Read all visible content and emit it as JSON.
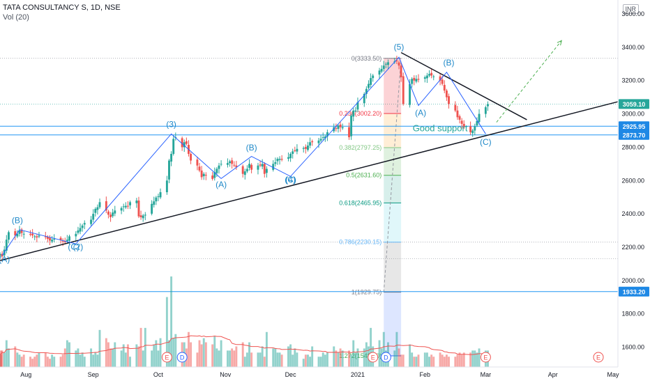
{
  "header": {
    "symbol_line": "TATA CONSULTANCY S, 1D, NSE",
    "volume_line": "Vol (20)",
    "currency": "INR"
  },
  "colors": {
    "up": "#26a69a",
    "down": "#ef5350",
    "wave": "#2962ff",
    "wave_label": "#1e88c8",
    "hline": "#2196f3",
    "trend": "#131722",
    "vol_ma": "#ef5350",
    "price_tag": "#1e88e5"
  },
  "chart_data": {
    "type": "candlestick",
    "x_ticks": [
      "Aug",
      "Sep",
      "Oct",
      "Nov",
      "Dec",
      "2021",
      "Feb",
      "Mar",
      "Apr",
      "May"
    ],
    "y_ticks": [
      "1600.00",
      "1800.00",
      "2000.00",
      "2200.00",
      "2400.00",
      "2600.00",
      "2800.00",
      "3000.00",
      "3200.00",
      "3400.00",
      "3600.00"
    ],
    "ylim": [
      1550,
      3680
    ],
    "x_start": "2020-07-20",
    "x_end": "2021-05-01",
    "closes": [
      2160,
      2145,
      2185,
      2245,
      2290,
      2270,
      2280,
      2300,
      2285,
      2280,
      2275,
      2270,
      2265,
      2258,
      2270,
      2262,
      2250,
      2240,
      2245,
      2250,
      2243,
      2235,
      2230,
      2245,
      2265,
      2280,
      2300,
      2315,
      2330,
      2345,
      2365,
      2400,
      2430,
      2440,
      2470,
      2420,
      2395,
      2380,
      2408,
      2420,
      2435,
      2445,
      2448,
      2445,
      2470,
      2480,
      2385,
      2380,
      2390,
      2395,
      2460,
      2475,
      2498,
      2505,
      2530,
      2600,
      2720,
      2760,
      2850,
      2860,
      2800,
      2830,
      2820,
      2760,
      2720,
      2690,
      2660,
      2620,
      2640,
      2630,
      2610,
      2650,
      2670,
      2690,
      2700,
      2705,
      2715,
      2700,
      2690,
      2680,
      2640,
      2655,
      2670,
      2700,
      2665,
      2690,
      2690,
      2700,
      2640,
      2670,
      2700,
      2710,
      2730,
      2730,
      2725,
      2740,
      2760,
      2775,
      2780,
      2790,
      2795,
      2790,
      2810,
      2830,
      2830,
      2840,
      2850,
      2860,
      2865,
      2890,
      2920,
      2910,
      2930,
      2920,
      2920,
      2860,
      2990,
      3020,
      3020,
      3070,
      3120,
      3150,
      3180,
      3215,
      3230,
      3260,
      3270,
      3290,
      3300,
      3310,
      3315,
      3315,
      3290,
      3220,
      3060,
      3180,
      3210,
      3200,
      3210,
      3205,
      3220,
      3230,
      3240,
      3230,
      3225,
      3200,
      3180,
      3140,
      3100,
      3060,
      3020,
      2980,
      2965,
      2940,
      2920,
      2890,
      2900,
      2925,
      2958,
      3000,
      3040,
      3059
    ],
    "volumes": [
      0.6,
      0.8,
      0.7,
      1.3,
      0.9,
      1.0,
      0.7,
      0.6,
      0.5,
      0.6,
      0.5,
      0.4,
      0.5,
      0.6,
      0.7,
      0.7,
      0.5,
      0.4,
      0.6,
      0.5,
      0.5,
      0.6,
      0.9,
      1.3,
      1.2,
      0.8,
      0.9,
      0.6,
      0.7,
      0.5,
      0.9,
      0.6,
      0.7,
      0.6,
      1.8,
      1.4,
      1.2,
      0.9,
      0.9,
      1.2,
      0.8,
      1.1,
      0.7,
      1.1,
      0.5,
      1.1,
      1.0,
      1.9,
      0.8,
      1.9,
      0.8,
      1.1,
      1.3,
      0.8,
      1.4,
      3.4,
      1.3,
      4.4,
      1.4,
      1.6,
      1.2,
      1.2,
      0.9,
      1.7,
      1.2,
      0.7,
      1.3,
      1.1,
      1.4,
      1.2,
      1.1,
      1.5,
      0.9,
      0.8,
      1.3,
      0.8,
      0.8,
      0.9,
      0.8,
      1.0,
      1.2,
      0.5,
      0.7,
      1.2,
      0.7,
      0.7,
      0.7,
      1.0,
      0.5,
      1.7,
      0.9,
      0.9,
      0.7,
      0.7,
      0.6,
      1.0,
      1.1,
      0.6,
      0.9,
      0.7,
      0.4,
      0.6,
      0.6,
      0.5,
      1.0,
      0.5,
      0.5,
      0.7,
      0.6,
      0.7,
      1.0,
      0.8,
      0.7,
      0.9,
      0.8,
      0.8,
      0.6,
      1.3,
      0.7,
      0.9,
      0.9,
      1.2,
      1.0,
      1.9,
      1.0,
      1.3,
      0.9,
      1.7,
      0.8,
      1.2,
      0.8,
      1.7,
      0.9,
      0.6,
      0.6,
      1.1,
      0.7,
      0.5,
      0.5,
      0.6,
      0.7,
      0.7,
      0.5,
      0.6,
      0.5,
      0.7,
      0.6,
      0.5,
      0.6,
      0.5,
      0.5,
      0.6,
      0.7,
      0.6,
      0.7,
      0.7,
      0.8,
      0.8,
      0.7,
      0.9,
      0.8,
      0.8,
      0.8,
      0.6
    ],
    "price_tags": [
      {
        "value": 3059.1,
        "label": "3059.10",
        "color": "#26a69a"
      },
      {
        "value": 2925.95,
        "label": "2925.95",
        "color": "#1e88e5"
      },
      {
        "value": 2873.7,
        "label": "2873.70",
        "color": "#1e88e5"
      },
      {
        "value": 1933.2,
        "label": "1933.20",
        "color": "#1e88e5"
      }
    ],
    "horizontal_lines": [
      2925.95,
      2873.7,
      1933.2
    ],
    "fib_levels": [
      {
        "ratio": "0",
        "value": 3333.5,
        "label": "0(3333.50)"
      },
      {
        "ratio": "0.236",
        "value": 3002.2,
        "label": "0.236(3002.20)"
      },
      {
        "ratio": "0.382",
        "value": 2797.25,
        "label": "0.382(2797.25)"
      },
      {
        "ratio": "0.5",
        "value": 2631.6,
        "label": "0.5(2631.60)"
      },
      {
        "ratio": "0.618",
        "value": 2465.95,
        "label": "0.618(2465.95)"
      },
      {
        "ratio": "0.786",
        "value": 2230.15,
        "label": "0.786(2230.15)"
      },
      {
        "ratio": "1",
        "value": 1929.75,
        "label": "1(1929.75)"
      },
      {
        "ratio": "1.272",
        "value": 1548.0,
        "label": "1.272(1548.00)"
      }
    ],
    "wave_points": [
      {
        "date": "2020-07-21",
        "price": 2150
      },
      {
        "date": "2020-07-29",
        "price": 2305
      },
      {
        "date": "2020-08-24",
        "price": 2220
      },
      {
        "date": "2020-10-07",
        "price": 2880
      },
      {
        "date": "2020-10-30",
        "price": 2612
      },
      {
        "date": "2020-11-13",
        "price": 2745
      },
      {
        "date": "2020-12-01",
        "price": 2625
      },
      {
        "date": "2021-01-20",
        "price": 3340
      },
      {
        "date": "2021-01-29",
        "price": 3050
      },
      {
        "date": "2021-02-11",
        "price": 3250
      },
      {
        "date": "2021-03-01",
        "price": 2880
      }
    ],
    "wave_labels": [
      {
        "text": "(A)",
        "date": "2020-07-22",
        "price": 2110
      },
      {
        "text": "(B)",
        "date": "2020-07-28",
        "price": 2345
      },
      {
        "text": "(C)",
        "date": "2020-08-23",
        "price": 2185
      },
      {
        "text": "(2)",
        "date": "2020-08-25",
        "price": 2185
      },
      {
        "text": "(3)",
        "date": "2020-10-07",
        "price": 2920
      },
      {
        "text": "(A)",
        "date": "2020-10-30",
        "price": 2560
      },
      {
        "text": "(B)",
        "date": "2020-11-13",
        "price": 2780
      },
      {
        "text": "(C)",
        "date": "2020-12-01",
        "price": 2588
      },
      {
        "text": "(4)",
        "date": "2020-12-01",
        "price": 2588
      },
      {
        "text": "(5)",
        "date": "2021-01-20",
        "price": 3385
      },
      {
        "text": "(A)",
        "date": "2021-01-30",
        "price": 2990
      },
      {
        "text": "(B)",
        "date": "2021-02-12",
        "price": 3290
      },
      {
        "text": "(C)",
        "date": "2021-03-01",
        "price": 2815
      }
    ],
    "annotation": {
      "text": "Good support",
      "date": "2021-02-08",
      "price": 2895
    },
    "trendlines": [
      {
        "from": {
          "date": "2020-07-20",
          "price": 2120
        },
        "to": {
          "date": "2021-05-01",
          "price": 3073
        }
      },
      {
        "from": {
          "date": "2021-01-21",
          "price": 3368
        },
        "to": {
          "date": "2021-03-20",
          "price": 2965
        }
      }
    ],
    "projection": {
      "from": {
        "date": "2021-03-06",
        "price": 2950
      },
      "to": {
        "date": "2021-04-05",
        "price": 3440
      }
    },
    "fib_anchor": {
      "from": {
        "date": "2021-01-13",
        "price": 1929.75
      },
      "to": {
        "date": "2021-01-21",
        "price": 3333.5
      }
    },
    "event_markers": [
      {
        "letter": "E",
        "date": "2020-10-05",
        "type": "earnings"
      },
      {
        "letter": "D",
        "date": "2020-10-12",
        "type": "dividend"
      },
      {
        "letter": "E",
        "date": "2021-01-08",
        "type": "earnings"
      },
      {
        "letter": "D",
        "date": "2021-01-14",
        "type": "dividend"
      },
      {
        "letter": "E",
        "date": "2021-03-01",
        "type": "earnings"
      },
      {
        "letter": "E",
        "date": "2021-04-22",
        "type": "earnings"
      }
    ]
  }
}
